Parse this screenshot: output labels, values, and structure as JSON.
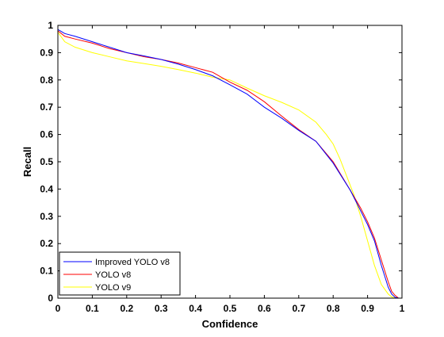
{
  "chart_data": {
    "type": "line",
    "title": "",
    "xlabel": "Confidence",
    "ylabel": "Recall",
    "xlim": [
      0,
      1
    ],
    "ylim": [
      0,
      1
    ],
    "xticks": [
      "0",
      "0.1",
      "0.2",
      "0.3",
      "0.4",
      "0.5",
      "0.6",
      "0.7",
      "0.8",
      "0.9",
      "1"
    ],
    "yticks": [
      "0",
      "0.1",
      "0.2",
      "0.3",
      "0.4",
      "0.5",
      "0.6",
      "0.7",
      "0.8",
      "0.9",
      "1"
    ],
    "grid": false,
    "legend_position": "bottom-left",
    "series": [
      {
        "name": "Improved YOLO v8",
        "color": "#0000ff",
        "x": [
          0,
          0.02,
          0.05,
          0.1,
          0.15,
          0.2,
          0.25,
          0.3,
          0.35,
          0.4,
          0.45,
          0.5,
          0.55,
          0.6,
          0.65,
          0.7,
          0.75,
          0.8,
          0.85,
          0.88,
          0.9,
          0.92,
          0.94,
          0.96,
          0.97,
          0.98,
          0.99,
          1.0
        ],
        "y": [
          0.985,
          0.97,
          0.96,
          0.94,
          0.92,
          0.9,
          0.888,
          0.875,
          0.858,
          0.838,
          0.815,
          0.782,
          0.748,
          0.7,
          0.66,
          0.615,
          0.575,
          0.495,
          0.395,
          0.32,
          0.27,
          0.21,
          0.12,
          0.04,
          0.015,
          0.003,
          0.0,
          0.0
        ]
      },
      {
        "name": "YOLO v8",
        "color": "#ff0000",
        "x": [
          0,
          0.02,
          0.05,
          0.1,
          0.15,
          0.2,
          0.25,
          0.3,
          0.35,
          0.4,
          0.45,
          0.5,
          0.55,
          0.6,
          0.65,
          0.7,
          0.75,
          0.8,
          0.85,
          0.88,
          0.9,
          0.92,
          0.94,
          0.96,
          0.97,
          0.98,
          0.99,
          1.0,
          1.0
        ],
        "y": [
          0.98,
          0.96,
          0.95,
          0.935,
          0.915,
          0.9,
          0.885,
          0.875,
          0.862,
          0.845,
          0.828,
          0.792,
          0.762,
          0.72,
          0.668,
          0.618,
          0.575,
          0.5,
          0.395,
          0.33,
          0.28,
          0.22,
          0.14,
          0.06,
          0.025,
          0.01,
          0.0,
          0.0,
          0.05
        ]
      },
      {
        "name": "YOLO v9",
        "color": "#ffff00",
        "x": [
          0,
          0.02,
          0.05,
          0.1,
          0.15,
          0.2,
          0.25,
          0.3,
          0.35,
          0.4,
          0.45,
          0.5,
          0.55,
          0.6,
          0.65,
          0.7,
          0.75,
          0.78,
          0.8,
          0.82,
          0.84,
          0.86,
          0.88,
          0.9,
          0.92,
          0.94,
          0.96,
          0.97,
          0.98,
          1.0
        ],
        "y": [
          0.975,
          0.94,
          0.92,
          0.9,
          0.885,
          0.87,
          0.86,
          0.85,
          0.838,
          0.825,
          0.81,
          0.8,
          0.77,
          0.742,
          0.718,
          0.69,
          0.645,
          0.6,
          0.565,
          0.51,
          0.445,
          0.38,
          0.3,
          0.21,
          0.12,
          0.05,
          0.015,
          0.005,
          0.0,
          0.0
        ]
      }
    ]
  }
}
